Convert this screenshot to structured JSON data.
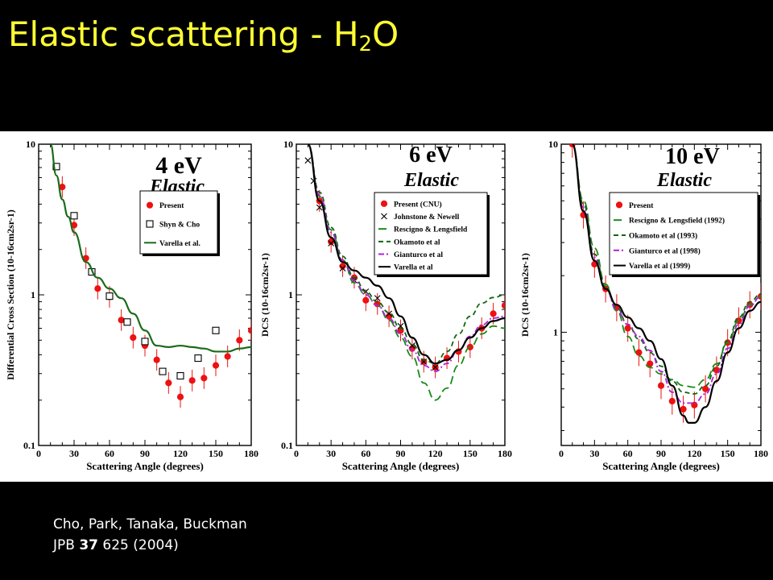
{
  "slide": {
    "title_main": "Elastic scattering - H",
    "title_sub": "2",
    "title_end": "O",
    "citation_line1": "Cho, Park, Tanaka, Buckman",
    "citation_journal": "JPB",
    "citation_volume": "37",
    "citation_rest": "625 (2004)"
  },
  "chart_data": [
    {
      "type": "scatter",
      "energy_label": "4 eV",
      "process_label": "Elastic",
      "xlabel": "Scattering Angle (degrees)",
      "ylabel": "Differential Cross Section (10-16cm2sr-1)",
      "xlim": [
        0,
        180
      ],
      "ylim": [
        0.1,
        10
      ],
      "yscale": "log",
      "xticks": [
        "0",
        "30",
        "60",
        "90",
        "120",
        "150",
        "180"
      ],
      "yticks": [
        "0.1",
        "1",
        "10"
      ],
      "legend_position": "right",
      "series": [
        {
          "name": "Present",
          "style": "points",
          "marker": "circle-errorbar",
          "color": "#ee1111",
          "x": [
            20,
            30,
            40,
            50,
            60,
            70,
            80,
            90,
            100,
            110,
            120,
            130,
            140,
            150,
            160,
            170,
            180
          ],
          "y": [
            5.2,
            2.9,
            1.75,
            1.1,
            0.97,
            0.68,
            0.52,
            0.46,
            0.37,
            0.26,
            0.21,
            0.27,
            0.28,
            0.34,
            0.39,
            0.5,
            0.58
          ]
        },
        {
          "name": "Shyn & Cho",
          "style": "points",
          "marker": "open-square",
          "color": "#000000",
          "x": [
            15,
            30,
            45,
            60,
            75,
            90,
            105,
            120,
            135,
            150
          ],
          "y": [
            7.1,
            3.35,
            1.42,
            0.98,
            0.66,
            0.49,
            0.31,
            0.29,
            0.38,
            0.58
          ]
        },
        {
          "name": "Varella et al.",
          "style": "line",
          "dash": "solid",
          "color": "#1a6b1a",
          "x": [
            10,
            15,
            20,
            25,
            30,
            40,
            50,
            60,
            70,
            80,
            90,
            100,
            110,
            120,
            130,
            140,
            150,
            160,
            170,
            180
          ],
          "y": [
            10,
            6.2,
            4.3,
            3.3,
            2.6,
            1.65,
            1.3,
            1.1,
            0.95,
            0.75,
            0.58,
            0.46,
            0.45,
            0.46,
            0.45,
            0.44,
            0.42,
            0.42,
            0.44,
            0.45
          ]
        }
      ]
    },
    {
      "type": "scatter",
      "energy_label": "6 eV",
      "process_label": "Elastic",
      "xlabel": "Scattering Angle (degrees)",
      "ylabel": "DCS (10-16cm2sr-1)",
      "xlim": [
        0,
        180
      ],
      "ylim": [
        0.1,
        10
      ],
      "yscale": "log",
      "xticks": [
        "0",
        "30",
        "60",
        "90",
        "120",
        "150",
        "180"
      ],
      "yticks": [
        "0.1",
        "1",
        "10"
      ],
      "legend_position": "right",
      "series": [
        {
          "name": "Present (CNU)",
          "style": "points",
          "marker": "circle-errorbar",
          "color": "#ee1111",
          "x": [
            20,
            30,
            40,
            50,
            60,
            70,
            80,
            90,
            100,
            110,
            120,
            130,
            140,
            150,
            160,
            170,
            180
          ],
          "y": [
            4.2,
            2.25,
            1.55,
            1.3,
            0.92,
            0.87,
            0.72,
            0.58,
            0.44,
            0.36,
            0.33,
            0.38,
            0.42,
            0.45,
            0.6,
            0.75,
            0.85
          ]
        },
        {
          "name": "Johnstone & Newell",
          "style": "points",
          "marker": "x",
          "color": "#000000",
          "x": [
            10,
            15,
            20,
            30,
            40,
            50,
            60,
            70,
            80,
            90,
            100,
            110,
            120
          ],
          "y": [
            7.8,
            5.7,
            3.8,
            2.2,
            1.5,
            1.25,
            1.05,
            0.95,
            0.75,
            0.62,
            0.46,
            0.36,
            0.33
          ]
        },
        {
          "name": "Rescigno & Lengsfield",
          "style": "line",
          "dash": "long-dash",
          "color": "#1a8a1a",
          "x": [
            10,
            20,
            30,
            40,
            50,
            60,
            70,
            80,
            90,
            100,
            110,
            120,
            130,
            140,
            150,
            160,
            170,
            180
          ],
          "y": [
            10,
            4.5,
            2.7,
            1.7,
            1.2,
            1.0,
            0.85,
            0.68,
            0.52,
            0.39,
            0.26,
            0.2,
            0.24,
            0.34,
            0.45,
            0.55,
            0.62,
            0.6
          ]
        },
        {
          "name": "Okamoto et al",
          "style": "line",
          "dash": "dash",
          "color": "#116611",
          "x": [
            10,
            20,
            30,
            40,
            50,
            60,
            70,
            80,
            90,
            100,
            110,
            120,
            130,
            140,
            150,
            160,
            170,
            180
          ],
          "y": [
            10,
            4.8,
            2.8,
            1.8,
            1.3,
            1.05,
            0.9,
            0.76,
            0.6,
            0.47,
            0.37,
            0.35,
            0.42,
            0.55,
            0.72,
            0.88,
            0.96,
            1.0
          ]
        },
        {
          "name": "Gianturco et al",
          "style": "line",
          "dash": "dash-dot",
          "color": "#aa22dd",
          "x": [
            10,
            20,
            30,
            40,
            50,
            60,
            70,
            80,
            90,
            100,
            110,
            120,
            130,
            140,
            150,
            160,
            170,
            180
          ],
          "y": [
            10,
            4.6,
            2.6,
            1.7,
            1.25,
            1.0,
            0.85,
            0.7,
            0.55,
            0.43,
            0.34,
            0.31,
            0.35,
            0.43,
            0.53,
            0.63,
            0.7,
            0.72
          ]
        },
        {
          "name": "Varella et al",
          "style": "line",
          "dash": "solid",
          "color": "#000000",
          "x": [
            10,
            20,
            30,
            40,
            50,
            60,
            70,
            80,
            90,
            100,
            110,
            120,
            130,
            140,
            150,
            160,
            170,
            180
          ],
          "y": [
            10,
            4.2,
            2.4,
            1.65,
            1.45,
            1.3,
            1.15,
            0.95,
            0.72,
            0.52,
            0.4,
            0.35,
            0.37,
            0.43,
            0.52,
            0.6,
            0.67,
            0.7
          ]
        }
      ]
    },
    {
      "type": "scatter",
      "energy_label": "10 eV",
      "process_label": "Elastic",
      "xlabel": "Scattering Angle (degrees)",
      "ylabel": "DCS (10-16cm2sr-1)",
      "xlim": [
        0,
        180
      ],
      "ylim": [
        0.25,
        10
      ],
      "yscale": "log",
      "xticks": [
        "0",
        "30",
        "60",
        "90",
        "120",
        "150",
        "180"
      ],
      "yticks": [
        "1",
        "10"
      ],
      "legend_position": "right",
      "series": [
        {
          "name": "Present",
          "style": "points",
          "marker": "circle-errorbar",
          "color": "#ee1111",
          "x": [
            10,
            20,
            30,
            40,
            50,
            60,
            70,
            80,
            90,
            100,
            110,
            120,
            130,
            140,
            150,
            160,
            170,
            180
          ],
          "y": [
            10,
            4.2,
            2.3,
            1.7,
            1.35,
            1.05,
            0.78,
            0.68,
            0.52,
            0.43,
            0.39,
            0.41,
            0.5,
            0.63,
            0.88,
            1.15,
            1.4,
            1.55
          ]
        },
        {
          "name": "Rescigno & Lengsfield (1992)",
          "style": "line",
          "dash": "long-dash",
          "color": "#1a8a1a",
          "x": [
            10,
            20,
            30,
            40,
            50,
            60,
            70,
            80,
            90,
            100,
            110,
            120,
            130,
            140,
            150,
            160,
            170,
            180
          ],
          "y": [
            10,
            5.0,
            2.8,
            1.8,
            1.3,
            0.95,
            0.75,
            0.65,
            0.6,
            0.56,
            0.52,
            0.51,
            0.56,
            0.68,
            0.88,
            1.15,
            1.4,
            1.55
          ]
        },
        {
          "name": "Okamoto et al (1993)",
          "style": "line",
          "dash": "dash",
          "color": "#116611",
          "x": [
            10,
            20,
            30,
            40,
            50,
            60,
            70,
            80,
            90,
            100,
            110,
            120,
            130,
            140,
            150,
            160,
            170,
            180
          ],
          "y": [
            10,
            4.8,
            2.6,
            1.75,
            1.35,
            1.1,
            0.92,
            0.78,
            0.66,
            0.55,
            0.48,
            0.47,
            0.52,
            0.66,
            0.9,
            1.2,
            1.45,
            1.6
          ]
        },
        {
          "name": "Gianturco et al (1998)",
          "style": "line",
          "dash": "dash-dot",
          "color": "#aa22dd",
          "x": [
            10,
            20,
            30,
            40,
            50,
            60,
            70,
            80,
            90,
            100,
            110,
            120,
            130,
            140,
            150,
            160,
            170,
            180
          ],
          "y": [
            10,
            4.6,
            2.5,
            1.7,
            1.32,
            1.1,
            0.95,
            0.8,
            0.62,
            0.48,
            0.42,
            0.42,
            0.47,
            0.6,
            0.82,
            1.1,
            1.38,
            1.55
          ]
        },
        {
          "name": "Varella et al (1999)",
          "style": "line",
          "dash": "solid",
          "color": "#000000",
          "x": [
            10,
            20,
            30,
            40,
            50,
            60,
            70,
            80,
            90,
            100,
            110,
            115,
            120,
            130,
            140,
            150,
            160,
            170,
            180
          ],
          "y": [
            10,
            4.4,
            2.4,
            1.7,
            1.4,
            1.2,
            1.05,
            0.9,
            0.72,
            0.52,
            0.36,
            0.33,
            0.33,
            0.4,
            0.55,
            0.78,
            1.05,
            1.3,
            1.45
          ]
        }
      ]
    }
  ]
}
